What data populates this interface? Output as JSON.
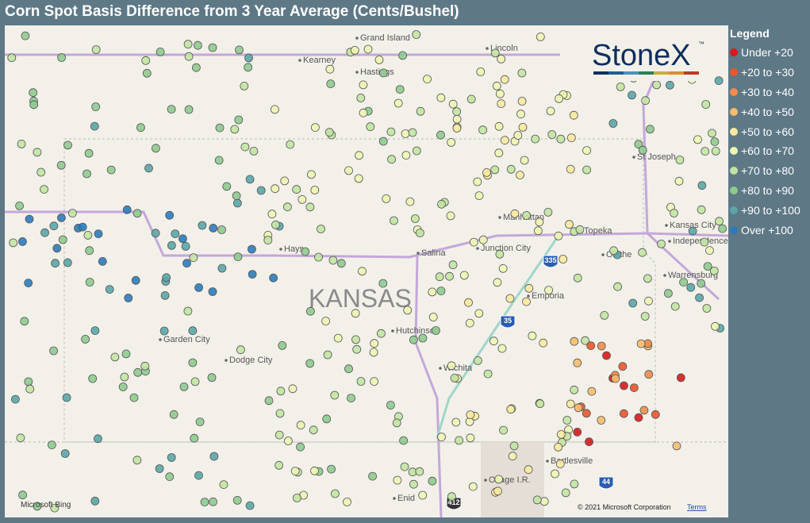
{
  "title": "Corn Spot Basis Difference from 3 Year Average (Cents/Bushel)",
  "legend": {
    "title": "Legend",
    "items": [
      {
        "label": "Under +20",
        "color": "#d7191c"
      },
      {
        "label": "+20 to +30",
        "color": "#e8552f"
      },
      {
        "label": "+30 to +40",
        "color": "#f08c4c"
      },
      {
        "label": "+40 to +50",
        "color": "#f7bc6e"
      },
      {
        "label": "+50 to +60",
        "color": "#fbe9a0"
      },
      {
        "label": "+60 to +70",
        "color": "#eef6b4"
      },
      {
        "label": "+70 to +80",
        "color": "#c2e4a2"
      },
      {
        "label": "+80 to +90",
        "color": "#8fca90"
      },
      {
        "label": "+90 to +100",
        "color": "#5aa6a8"
      },
      {
        "label": "Over +100",
        "color": "#2b7bbb"
      }
    ]
  },
  "logo": {
    "text": "StoneX",
    "mark": "™"
  },
  "map": {
    "state_label": "KANSAS",
    "places": [
      "Grand Island",
      "Kearney",
      "Hastings",
      "Lincoln",
      "St Joseph",
      "Manhattan",
      "Topeka",
      "Kansas City",
      "Independence",
      "Hays",
      "Salina",
      "Junction City",
      "Olathe",
      "Emporia",
      "Warrensburg",
      "Garden City",
      "Dodge City",
      "Hutchinson",
      "Wichita",
      "Bartlesville",
      "Osage I.R.",
      "Enid"
    ],
    "highways": [
      "335",
      "35",
      "412",
      "44"
    ],
    "provider": "Microsoft Bing",
    "attribution": "© 2021 Microsoft Corporation",
    "terms": "Terms"
  }
}
